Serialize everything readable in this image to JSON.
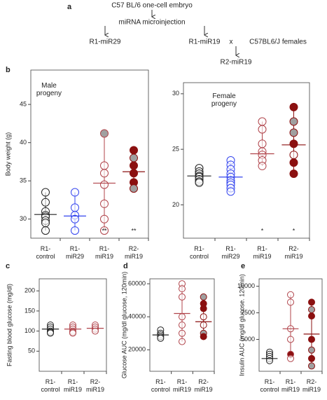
{
  "diagram": {
    "panel": "a",
    "embryo": "C57 BL/6 one-cell embryo",
    "injection": "miRNA microinjection",
    "left": "R1-miR29",
    "middle": "R1-miR19",
    "cross": "x",
    "females": "C57BL6/J females",
    "result": "R2-miR19"
  },
  "chart_data": [
    {
      "type": "dot",
      "panel": "b",
      "title": "Male progeny",
      "ylabel": "Body weight (g)",
      "ylim": [
        27.5,
        49.5
      ],
      "yticks": [
        30,
        35,
        40,
        45
      ],
      "categories": [
        "R1-control",
        "R1-miR29",
        "R1-miR19",
        "R2-miR19"
      ],
      "groups": [
        {
          "color": "#222222",
          "points": [
            33.5,
            32.2,
            31,
            30.5,
            30.3,
            29.8,
            29.5,
            28.5
          ],
          "fills": [
            "none",
            "none",
            "none",
            "none",
            "none",
            "none",
            "none",
            "none"
          ],
          "mean": 30.6,
          "error": [
            28.5,
            33.5
          ]
        },
        {
          "color": "#3344ee",
          "points": [
            33.5,
            31.5,
            30.5,
            30,
            28.5
          ],
          "fills": [
            "none",
            "none",
            "none",
            "none",
            "none"
          ],
          "mean": 30.4,
          "error": [
            28.5,
            33.5
          ]
        },
        {
          "color": "#b0434a",
          "points": [
            41.2,
            37,
            36,
            34.5,
            32,
            30,
            28.5
          ],
          "fills": [
            "#a0a0a0",
            "none",
            "none",
            "none",
            "none",
            "none",
            "none"
          ],
          "mean": 34.7,
          "error": [
            28.5,
            41.2
          ],
          "sig": "**"
        },
        {
          "color": "#8b1010",
          "points": [
            39,
            38,
            37,
            36,
            34.8,
            34
          ],
          "fills": [
            "#8b1010",
            "#a0a0a0",
            "#8b1010",
            "#8b1010",
            "#8b1010",
            "#a0a0a0"
          ],
          "mean": 36.2,
          "error": [
            34,
            39
          ],
          "sig": "**"
        }
      ]
    },
    {
      "type": "dot",
      "title": "Female progeny",
      "ylim": [
        17,
        31
      ],
      "yticks": [
        20,
        25,
        30
      ],
      "categories": [
        "R1-control",
        "R1-miR29",
        "R1-miR19",
        "R2-miR19"
      ],
      "groups": [
        {
          "color": "#222222",
          "points": [
            23.3,
            23,
            22.8,
            22.6,
            22.5,
            22.3,
            22.1,
            22
          ],
          "fills": [
            "none",
            "none",
            "none",
            "none",
            "none",
            "none",
            "none",
            "none"
          ],
          "mean": 22.6,
          "error": [
            22,
            23.3
          ]
        },
        {
          "color": "#3344ee",
          "points": [
            24,
            23.6,
            23.2,
            22.8,
            22.5,
            22.2,
            22,
            21.8,
            21.5,
            21.2
          ],
          "fills": [
            "none",
            "none",
            "none",
            "none",
            "none",
            "none",
            "none",
            "none",
            "none",
            "none"
          ],
          "mean": 22.5,
          "error": [
            21.2,
            24
          ]
        },
        {
          "color": "#b0434a",
          "points": [
            27.5,
            26.8,
            25.5,
            24.8,
            24.5,
            24,
            23.5
          ],
          "fills": [
            "none",
            "none",
            "none",
            "none",
            "none",
            "none",
            "none"
          ],
          "mean": 24.6,
          "error": [
            23.5,
            27.5
          ],
          "sig": "*"
        },
        {
          "color": "#8b1010",
          "points": [
            28.8,
            27.5,
            26.5,
            25.5,
            24.5,
            23.8,
            22.8
          ],
          "fills": [
            "#8b1010",
            "#a0a0a0",
            "#a0a0a0",
            "#8b1010",
            "none",
            "#8b1010",
            "#8b1010"
          ],
          "mean": 25.4,
          "error": [
            22.8,
            28.8
          ],
          "sig": "*"
        }
      ]
    },
    {
      "type": "dot",
      "panel": "c",
      "ylabel": "Fasting blood glucose (mg/dl)",
      "ylim": [
        0,
        230
      ],
      "yticks": [
        50,
        100,
        150,
        200
      ],
      "categories": [
        "R1-control",
        "R1-miR19",
        "R2-miR19"
      ],
      "groups": [
        {
          "color": "#222222",
          "points": [
            115,
            110,
            105,
            100,
            97,
            95
          ],
          "fills": [
            "none",
            "none",
            "none",
            "none",
            "none",
            "none"
          ],
          "mean": 105,
          "error": [
            95,
            115
          ]
        },
        {
          "color": "#b0434a",
          "points": [
            115,
            110,
            105,
            100,
            97,
            95
          ],
          "fills": [
            "none",
            "none",
            "none",
            "none",
            "none",
            "none"
          ],
          "mean": 105,
          "error": [
            95,
            115
          ]
        },
        {
          "color": "#b0434a",
          "points": [
            115,
            110,
            105,
            100
          ],
          "fills": [
            "none",
            "none",
            "none",
            "none"
          ],
          "mean": 107,
          "error": [
            100,
            115
          ]
        }
      ]
    },
    {
      "type": "dot",
      "panel": "d",
      "ylabel": "Glucose AUC (mg/dl glucose, 120min)",
      "ylim": [
        7000,
        63000
      ],
      "yticks": [
        20000,
        40000,
        60000
      ],
      "categories": [
        "R1-control",
        "R1-miR19",
        "R2-miR19"
      ],
      "groups": [
        {
          "color": "#222222",
          "points": [
            32000,
            30000,
            29000,
            28000,
            27000
          ],
          "fills": [
            "none",
            "none",
            "none",
            "none",
            "none"
          ],
          "mean": 29000,
          "error": [
            27000,
            32000
          ]
        },
        {
          "color": "#b0434a",
          "points": [
            60000,
            57000,
            52000,
            40000,
            35000,
            30000,
            25000
          ],
          "fills": [
            "none",
            "none",
            "none",
            "none",
            "none",
            "none",
            "none"
          ],
          "mean": 42000,
          "error": [
            25000,
            60000
          ]
        },
        {
          "color": "#8b1010",
          "points": [
            52000,
            48000,
            45000,
            40000,
            35000,
            30000,
            28000
          ],
          "fills": [
            "#a0a0a0",
            "#8b1010",
            "#8b1010",
            "none",
            "none",
            "#a0a0a0",
            "#8b1010"
          ],
          "mean": 37000,
          "error": [
            28000,
            52000
          ]
        }
      ]
    },
    {
      "type": "dot",
      "panel": "e",
      "ylabel": "Insulin AUC (mg/dl glucose. 120min)",
      "ylim": [
        2000,
        10700
      ],
      "yticks": [
        5000,
        7500,
        10000
      ],
      "categories": [
        "R1-control",
        "R1-miR19",
        "R2-miR19"
      ],
      "groups": [
        {
          "color": "#222222",
          "points": [
            3800,
            3600,
            3400,
            3200,
            3000
          ],
          "fills": [
            "none",
            "none",
            "none",
            "none",
            "none"
          ],
          "mean": 3200,
          "error": [
            3000,
            3800
          ]
        },
        {
          "color": "#b0434a",
          "points": [
            9200,
            8500,
            6000,
            5000,
            3600,
            3200
          ],
          "fills": [
            "none",
            "none",
            "none",
            "none",
            "#8b1010",
            "none"
          ],
          "mean": 6000,
          "error": [
            3200,
            9200
          ]
        },
        {
          "color": "#8b1010",
          "points": [
            8500,
            7800,
            7200,
            5000,
            4000,
            3200,
            2500
          ],
          "fills": [
            "#8b1010",
            "#a0a0a0",
            "#8b1010",
            "#8b1010",
            "#a0a0a0",
            "#8b1010",
            "#a0a0a0"
          ],
          "mean": 5500,
          "error": [
            2500,
            8500
          ]
        }
      ]
    }
  ]
}
